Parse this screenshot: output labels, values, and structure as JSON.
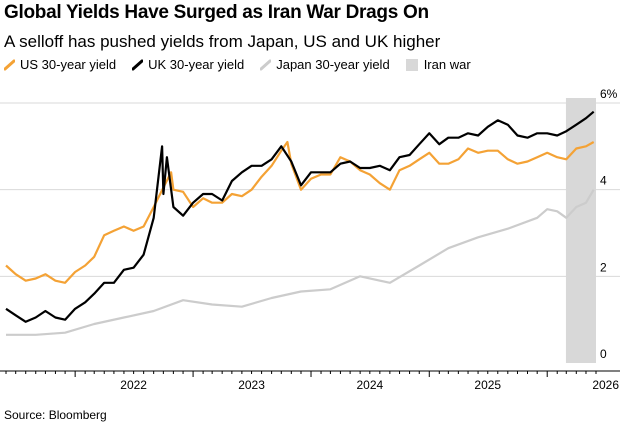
{
  "header": {
    "title": "Global Yields Have Surged as Iran War Drags On",
    "subtitle": "A selloff has pushed yields from Japan, US and UK higher"
  },
  "legend": {
    "us_label": "US 30-year yield",
    "uk_label": "UK 30-year yield",
    "japan_label": "Japan 30-year yield",
    "war_label": "Iran war"
  },
  "source": "Source: Bloomberg",
  "colors": {
    "us": "#f4a235",
    "uk": "#000000",
    "japan": "#cccccc",
    "war_shade": "#d8d8d8",
    "grid": "#d9d9d9"
  },
  "chart_data": {
    "type": "line",
    "title": "Global Yields Have Surged as Iran War Drags On",
    "subtitle": "A selloff has pushed yields from Japan, US and UK higher",
    "ylim": [
      0,
      6
    ],
    "y_ticks": [
      "0",
      "2",
      "4",
      "6%"
    ],
    "x_ticks": [
      "2022",
      "2023",
      "2024",
      "2025",
      "2026"
    ],
    "xlim": [
      "2021-06-01",
      "2026-06-01"
    ],
    "grid": true,
    "y_axis_side": "right",
    "legend_placement": "top",
    "shaded_regions": [
      {
        "name": "Iran war",
        "x": [
          "2026-02-28",
          "2026-06-01"
        ]
      }
    ],
    "series": [
      {
        "name": "US 30-year yield",
        "x": [
          "2021-06-01",
          "2021-07-01",
          "2021-08-01",
          "2021-09-01",
          "2021-10-01",
          "2021-11-01",
          "2021-12-01",
          "2022-01-01",
          "2022-02-01",
          "2022-03-01",
          "2022-04-01",
          "2022-05-01",
          "2022-06-01",
          "2022-07-01",
          "2022-08-01",
          "2022-09-01",
          "2022-10-01",
          "2022-10-25",
          "2022-11-01",
          "2022-12-01",
          "2023-01-01",
          "2023-02-01",
          "2023-03-01",
          "2023-04-01",
          "2023-05-01",
          "2023-06-01",
          "2023-07-01",
          "2023-08-01",
          "2023-09-01",
          "2023-10-01",
          "2023-10-20",
          "2023-11-01",
          "2023-12-01",
          "2024-01-01",
          "2024-02-01",
          "2024-03-01",
          "2024-04-01",
          "2024-05-01",
          "2024-06-01",
          "2024-07-01",
          "2024-08-01",
          "2024-09-01",
          "2024-10-01",
          "2024-11-01",
          "2024-12-01",
          "2025-01-01",
          "2025-02-01",
          "2025-03-01",
          "2025-04-01",
          "2025-05-01",
          "2025-06-01",
          "2025-07-01",
          "2025-08-01",
          "2025-09-01",
          "2025-10-01",
          "2025-11-01",
          "2025-12-01",
          "2026-01-01",
          "2026-02-01",
          "2026-03-01",
          "2026-04-01",
          "2026-05-01",
          "2026-05-25"
        ],
        "values": [
          2.25,
          2.05,
          1.9,
          1.95,
          2.05,
          1.9,
          1.85,
          2.1,
          2.25,
          2.45,
          2.95,
          3.05,
          3.15,
          3.05,
          3.15,
          3.6,
          4.05,
          4.4,
          4.0,
          3.95,
          3.6,
          3.8,
          3.7,
          3.7,
          3.9,
          3.85,
          4.0,
          4.3,
          4.55,
          4.9,
          5.1,
          4.6,
          4.0,
          4.25,
          4.35,
          4.35,
          4.75,
          4.65,
          4.45,
          4.35,
          4.15,
          4.0,
          4.45,
          4.55,
          4.7,
          4.85,
          4.6,
          4.6,
          4.7,
          4.95,
          4.85,
          4.9,
          4.9,
          4.7,
          4.6,
          4.65,
          4.75,
          4.85,
          4.75,
          4.7,
          4.95,
          5.0,
          5.1
        ]
      },
      {
        "name": "UK 30-year yield",
        "x": [
          "2021-06-01",
          "2021-07-01",
          "2021-08-01",
          "2021-09-01",
          "2021-10-01",
          "2021-11-01",
          "2021-12-01",
          "2022-01-01",
          "2022-02-01",
          "2022-03-01",
          "2022-04-01",
          "2022-05-01",
          "2022-06-01",
          "2022-07-01",
          "2022-08-01",
          "2022-09-01",
          "2022-09-27",
          "2022-10-01",
          "2022-10-12",
          "2022-11-01",
          "2022-12-01",
          "2023-01-01",
          "2023-02-01",
          "2023-03-01",
          "2023-04-01",
          "2023-05-01",
          "2023-06-01",
          "2023-07-01",
          "2023-08-01",
          "2023-09-01",
          "2023-10-01",
          "2023-11-01",
          "2023-12-01",
          "2024-01-01",
          "2024-02-01",
          "2024-03-01",
          "2024-04-01",
          "2024-05-01",
          "2024-06-01",
          "2024-07-01",
          "2024-08-01",
          "2024-09-01",
          "2024-10-01",
          "2024-11-01",
          "2024-12-01",
          "2025-01-01",
          "2025-02-01",
          "2025-03-01",
          "2025-04-01",
          "2025-05-01",
          "2025-06-01",
          "2025-07-01",
          "2025-08-01",
          "2025-09-01",
          "2025-10-01",
          "2025-11-01",
          "2025-12-01",
          "2026-01-01",
          "2026-02-01",
          "2026-03-01",
          "2026-04-01",
          "2026-05-01",
          "2026-05-25"
        ],
        "values": [
          1.25,
          1.1,
          0.95,
          1.05,
          1.2,
          1.05,
          1.0,
          1.25,
          1.4,
          1.6,
          1.85,
          1.85,
          2.15,
          2.2,
          2.5,
          3.35,
          5.0,
          3.9,
          4.75,
          3.6,
          3.4,
          3.7,
          3.9,
          3.9,
          3.75,
          4.2,
          4.4,
          4.55,
          4.55,
          4.7,
          5.0,
          4.65,
          4.1,
          4.4,
          4.4,
          4.4,
          4.6,
          4.65,
          4.5,
          4.5,
          4.55,
          4.45,
          4.75,
          4.8,
          5.05,
          5.3,
          5.05,
          5.2,
          5.2,
          5.3,
          5.25,
          5.45,
          5.6,
          5.5,
          5.25,
          5.2,
          5.3,
          5.3,
          5.25,
          5.35,
          5.5,
          5.65,
          5.8
        ]
      },
      {
        "name": "Japan 30-year yield",
        "x": [
          "2021-06-01",
          "2021-09-01",
          "2021-12-01",
          "2022-03-01",
          "2022-06-01",
          "2022-09-01",
          "2022-12-01",
          "2023-03-01",
          "2023-06-01",
          "2023-09-01",
          "2023-12-01",
          "2024-03-01",
          "2024-06-01",
          "2024-09-01",
          "2024-12-01",
          "2025-03-01",
          "2025-06-01",
          "2025-09-01",
          "2025-12-01",
          "2026-01-01",
          "2026-02-01",
          "2026-03-01",
          "2026-04-01",
          "2026-05-01",
          "2026-05-25"
        ],
        "values": [
          0.65,
          0.65,
          0.7,
          0.9,
          1.05,
          1.2,
          1.45,
          1.35,
          1.3,
          1.5,
          1.65,
          1.7,
          2.0,
          1.85,
          2.25,
          2.65,
          2.9,
          3.1,
          3.35,
          3.55,
          3.5,
          3.35,
          3.6,
          3.7,
          4.0
        ]
      }
    ]
  }
}
